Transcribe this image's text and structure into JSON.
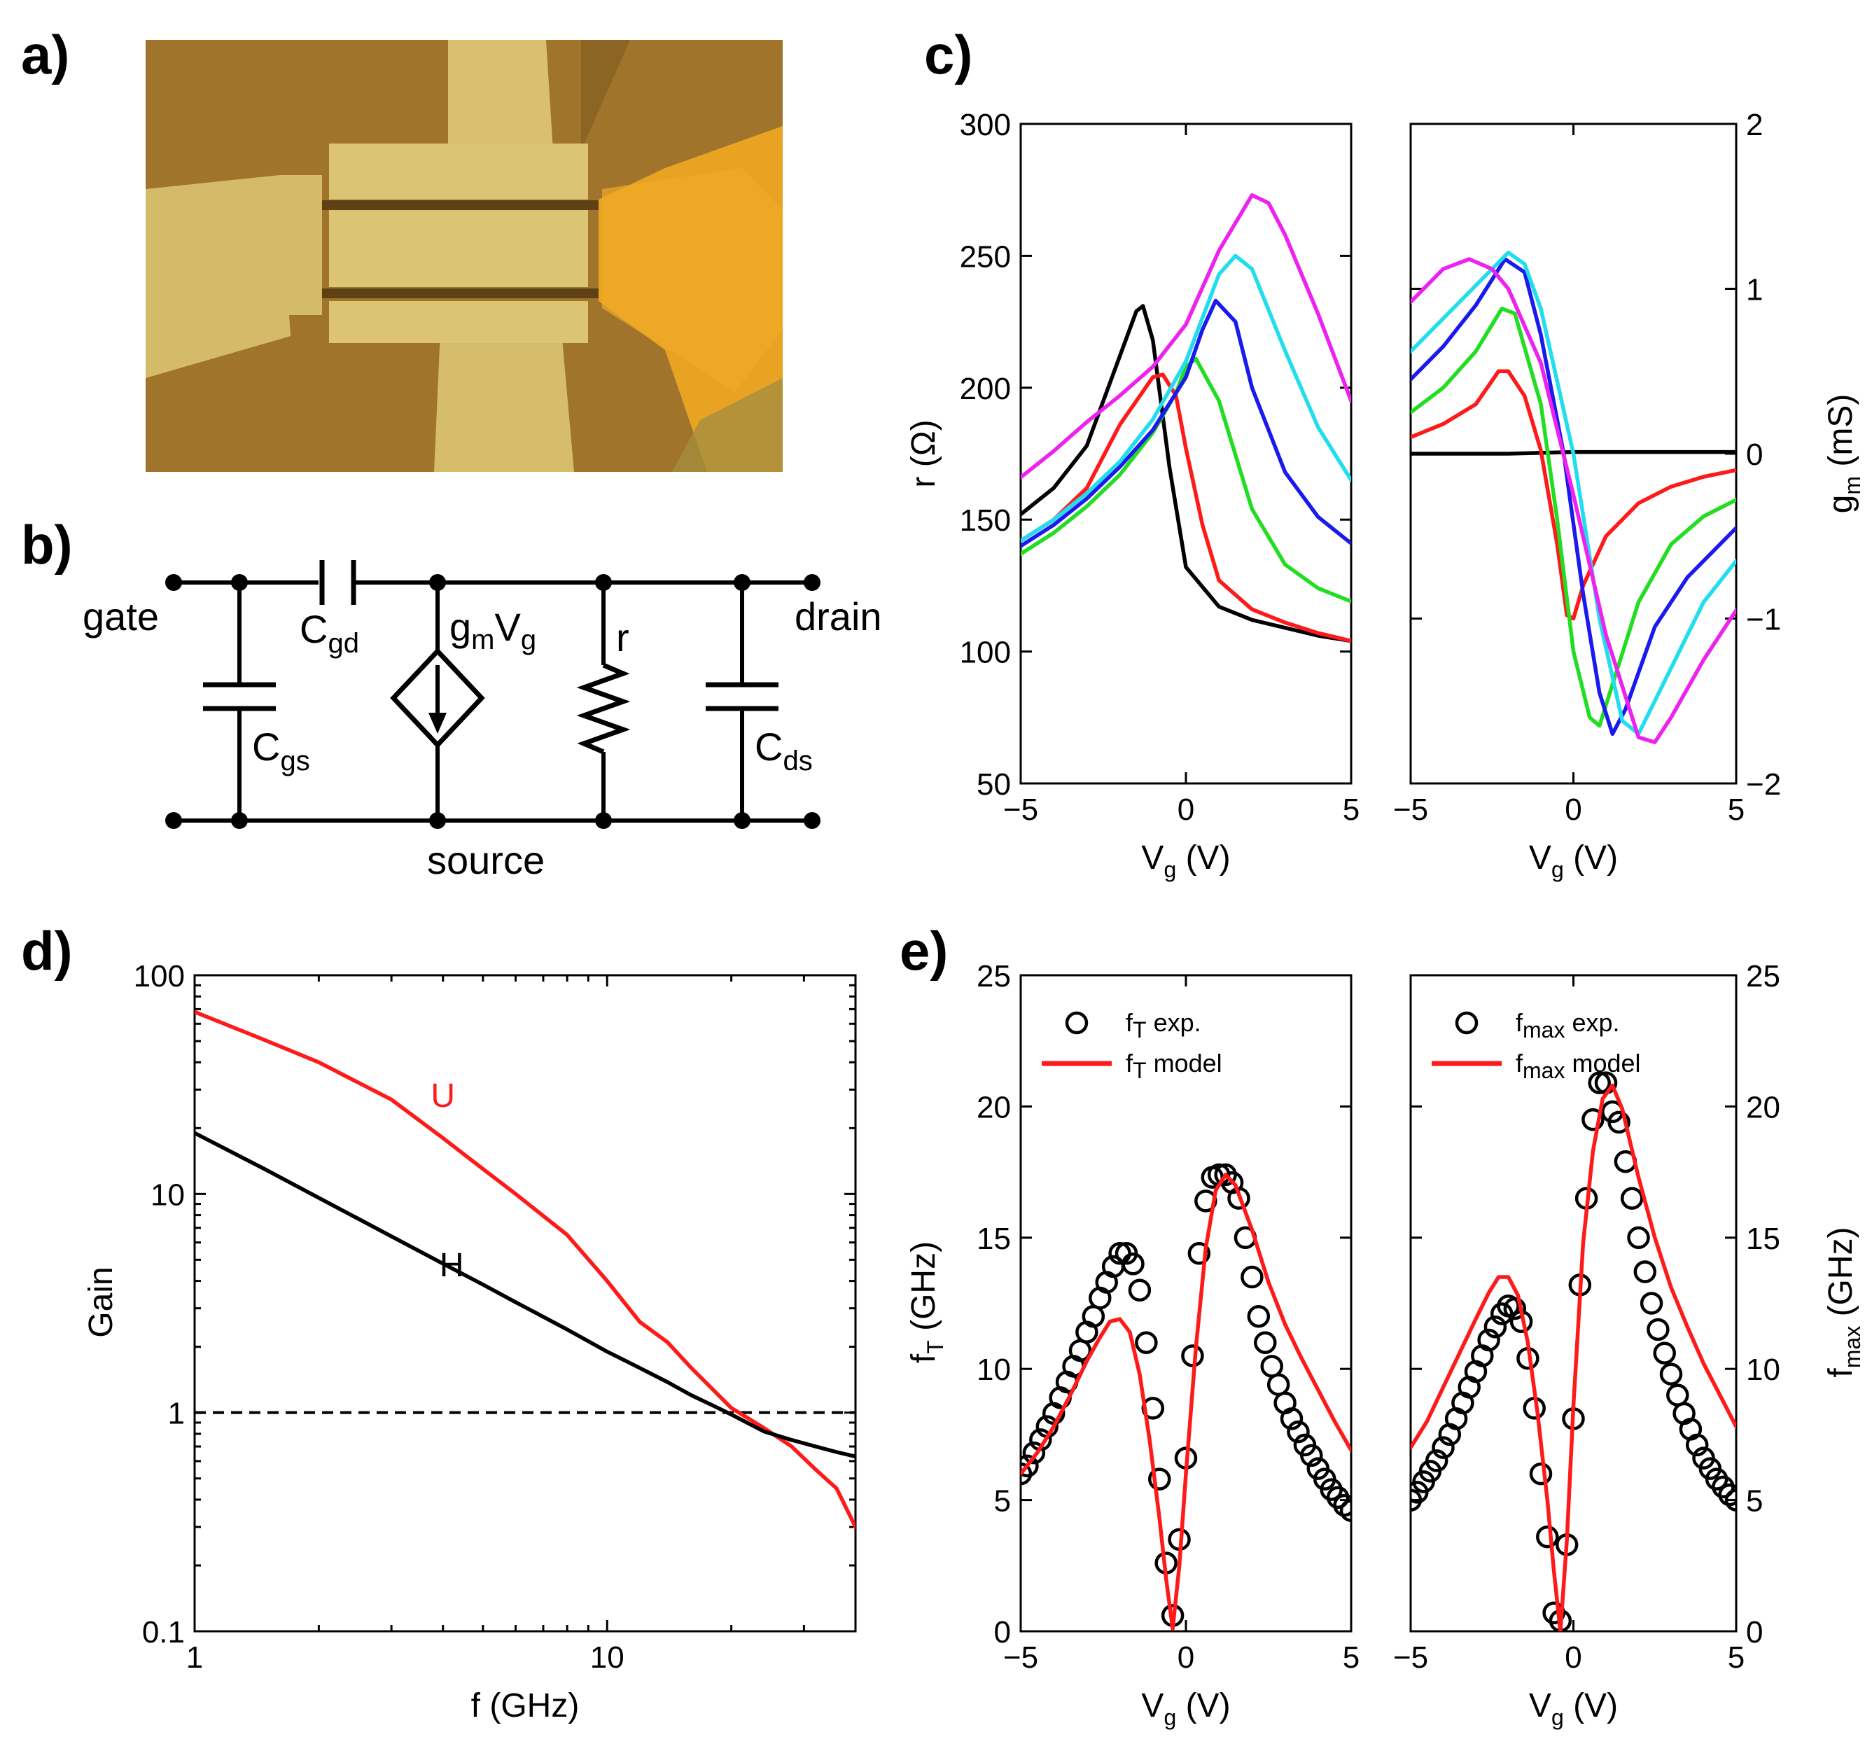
{
  "panel_labels": {
    "a": "a)",
    "b": "b)",
    "c": "c)",
    "d": "d)",
    "e": "e)"
  },
  "photo": {
    "description_colors": {
      "substrate": "#a07a2a",
      "metal": "#d8c070",
      "pad": "#e8a020",
      "gap": "#6a4a1a"
    }
  },
  "circuit": {
    "gate": "gate",
    "drain": "drain",
    "source": "source",
    "cgd": {
      "main": "C",
      "sub": "gd"
    },
    "cgs": {
      "main": "C",
      "sub": "gs"
    },
    "cds": {
      "main": "C",
      "sub": "ds"
    },
    "gm": {
      "g": "g",
      "m": "m",
      "V": "V",
      "gsub": "g"
    },
    "r": "r"
  },
  "colors": {
    "black": "#000000",
    "red": "#ff1a1a",
    "green": "#22dd22",
    "blue": "#1a1aee",
    "cyan": "#22ddee",
    "magenta": "#ee22ee"
  },
  "chart_data": [
    {
      "id": "c-left",
      "type": "line",
      "xlabel": {
        "main": "V",
        "sub": "g",
        "unit": " (V)"
      },
      "ylabel": {
        "main": "r (Ω)"
      },
      "xlim": [
        -5,
        5
      ],
      "ylim": [
        50,
        300
      ],
      "xticks": [
        -5,
        0,
        5
      ],
      "yticks": [
        50,
        100,
        150,
        200,
        250,
        300
      ],
      "xticklabels": [
        "−5",
        "0",
        "5"
      ],
      "yticklabels": [
        "50",
        "100",
        "150",
        "200",
        "250",
        "300"
      ],
      "series": [
        {
          "name": "black",
          "color": "#000000",
          "x": [
            -5,
            -4,
            -3,
            -2,
            -1.5,
            -1.3,
            -1,
            -0.5,
            0,
            1,
            2,
            3,
            4,
            5
          ],
          "y": [
            152,
            162,
            178,
            212,
            229,
            231,
            218,
            170,
            132,
            117,
            112,
            109,
            106,
            104
          ]
        },
        {
          "name": "red",
          "color": "#ff1a1a",
          "x": [
            -5,
            -4,
            -3,
            -2,
            -1,
            -0.7,
            -0.3,
            0,
            0.5,
            1,
            2,
            3,
            4,
            5
          ],
          "y": [
            142,
            150,
            162,
            186,
            204,
            205,
            197,
            177,
            148,
            127,
            116,
            111,
            107,
            104
          ]
        },
        {
          "name": "green",
          "color": "#22dd22",
          "x": [
            -5,
            -4,
            -3,
            -2,
            -1,
            -0.3,
            0,
            0.3,
            1,
            2,
            3,
            4,
            5
          ],
          "y": [
            137,
            145,
            155,
            167,
            183,
            198,
            208,
            211,
            195,
            154,
            133,
            124,
            119
          ]
        },
        {
          "name": "blue",
          "color": "#1a1aee",
          "x": [
            -5,
            -4,
            -3,
            -2,
            -1,
            0,
            0.5,
            0.9,
            1.5,
            2,
            3,
            4,
            5
          ],
          "y": [
            140,
            148,
            158,
            170,
            184,
            204,
            222,
            233,
            225,
            200,
            168,
            151,
            141
          ]
        },
        {
          "name": "cyan",
          "color": "#22ddee",
          "x": [
            -5,
            -4,
            -3,
            -2,
            -1,
            0,
            1,
            1.5,
            2,
            3,
            4,
            5
          ],
          "y": [
            142,
            150,
            160,
            172,
            188,
            210,
            243,
            250,
            245,
            214,
            185,
            165
          ]
        },
        {
          "name": "magenta",
          "color": "#ee22ee",
          "x": [
            -5,
            -4,
            -3,
            -2,
            -1,
            0,
            1,
            2,
            2.5,
            3,
            4,
            5
          ],
          "y": [
            166,
            176,
            187,
            197,
            208,
            224,
            252,
            273,
            270,
            258,
            228,
            195
          ]
        }
      ]
    },
    {
      "id": "c-right",
      "type": "line",
      "xlabel": {
        "main": "V",
        "sub": "g",
        "unit": " (V)"
      },
      "ylabel": {
        "main": "g",
        "sub": "m",
        "unit": " (mS)"
      },
      "xlim": [
        -5,
        5
      ],
      "ylim": [
        -2,
        2
      ],
      "xticks": [
        -5,
        0,
        5
      ],
      "yticks": [
        -2,
        -1,
        0,
        1,
        2
      ],
      "xticklabels": [
        "−5",
        "0",
        "5"
      ],
      "yticklabels": [
        "−2",
        "−1",
        "0",
        "1",
        "2"
      ],
      "series": [
        {
          "name": "black",
          "color": "#000000",
          "x": [
            -5,
            -2,
            0,
            2,
            5
          ],
          "y": [
            0,
            0,
            0.01,
            0.01,
            0.01
          ]
        },
        {
          "name": "red",
          "color": "#ff1a1a",
          "x": [
            -5,
            -4,
            -3,
            -2.3,
            -2,
            -1.5,
            -1,
            -0.5,
            -0.2,
            0,
            0.3,
            1,
            2,
            3,
            4,
            5
          ],
          "y": [
            0.1,
            0.18,
            0.3,
            0.5,
            0.5,
            0.35,
            0.02,
            -0.55,
            -0.98,
            -1.0,
            -0.8,
            -0.5,
            -0.3,
            -0.2,
            -0.14,
            -0.1
          ]
        },
        {
          "name": "green",
          "color": "#22dd22",
          "x": [
            -5,
            -4,
            -3,
            -2.2,
            -1.8,
            -1,
            -0.5,
            0,
            0.5,
            0.8,
            1.2,
            2,
            3,
            4,
            5
          ],
          "y": [
            0.25,
            0.4,
            0.62,
            0.88,
            0.85,
            0.3,
            -0.4,
            -1.2,
            -1.6,
            -1.65,
            -1.4,
            -0.9,
            -0.55,
            -0.38,
            -0.28
          ]
        },
        {
          "name": "blue",
          "color": "#1a1aee",
          "x": [
            -5,
            -4,
            -3,
            -2.1,
            -1.5,
            -1,
            -0.3,
            0.3,
            0.8,
            1.2,
            1.6,
            2.5,
            3.5,
            5
          ],
          "y": [
            0.45,
            0.65,
            0.9,
            1.18,
            1.1,
            0.72,
            0.0,
            -0.85,
            -1.45,
            -1.7,
            -1.55,
            -1.05,
            -0.75,
            -0.45
          ]
        },
        {
          "name": "cyan",
          "color": "#22ddee",
          "x": [
            -5,
            -4,
            -3,
            -2,
            -1.5,
            -1,
            0,
            0.8,
            1.5,
            2,
            3,
            4,
            5
          ],
          "y": [
            0.62,
            0.82,
            1.02,
            1.22,
            1.15,
            0.88,
            0.0,
            -1.0,
            -1.62,
            -1.7,
            -1.3,
            -0.9,
            -0.65
          ]
        },
        {
          "name": "magenta",
          "color": "#ee22ee",
          "x": [
            -5,
            -4,
            -3.2,
            -2.5,
            -2,
            -1,
            0,
            1,
            2,
            2.5,
            3,
            4,
            5
          ],
          "y": [
            0.92,
            1.12,
            1.18,
            1.12,
            1.0,
            0.55,
            -0.25,
            -1.1,
            -1.72,
            -1.75,
            -1.6,
            -1.25,
            -0.95
          ]
        }
      ]
    },
    {
      "id": "d",
      "type": "line",
      "scale": "log-log",
      "xlabel": {
        "main": "f (GHz)"
      },
      "ylabel": {
        "main": "Gain"
      },
      "xlim": [
        1,
        40
      ],
      "ylim": [
        0.1,
        100
      ],
      "xticks": [
        1,
        10
      ],
      "yticks": [
        0.1,
        1,
        10,
        100
      ],
      "xticklabels": [
        "1",
        "10"
      ],
      "yticklabels": [
        "0.1",
        "1",
        "10",
        "100"
      ],
      "annotations": [
        {
          "text": "U",
          "color": "#ff1a1a",
          "x": 4,
          "y": 25
        },
        {
          "text": "H",
          "color": "#000000",
          "x": 4.2,
          "y": 4.2
        }
      ],
      "reference_line": {
        "y": 1,
        "style": "dashed"
      },
      "series": [
        {
          "name": "U",
          "color": "#ff1a1a",
          "x": [
            1,
            1.5,
            2,
            3,
            4,
            5,
            6,
            8,
            10,
            12,
            14,
            16,
            20,
            24,
            28,
            32,
            36,
            40
          ],
          "y": [
            68,
            50,
            40,
            27,
            18,
            13,
            10,
            6.5,
            4.0,
            2.6,
            2.1,
            1.6,
            1.05,
            0.85,
            0.7,
            0.55,
            0.45,
            0.3
          ]
        },
        {
          "name": "H",
          "color": "#000000",
          "x": [
            1,
            1.5,
            2,
            3,
            4,
            5,
            6,
            8,
            10,
            12,
            14,
            16,
            18,
            20,
            24,
            28,
            32,
            36,
            40
          ],
          "y": [
            19,
            12.8,
            9.6,
            6.4,
            4.8,
            3.85,
            3.2,
            2.4,
            1.9,
            1.6,
            1.38,
            1.2,
            1.08,
            0.98,
            0.82,
            0.75,
            0.7,
            0.66,
            0.63
          ]
        }
      ]
    },
    {
      "id": "e-left",
      "type": "scatter+line",
      "xlabel": {
        "main": "V",
        "sub": "g",
        "unit": " (V)"
      },
      "ylabel": {
        "main": "f",
        "sub": "T",
        "unit": " (GHz)"
      },
      "xlim": [
        -5,
        5
      ],
      "ylim": [
        0,
        25
      ],
      "xticks": [
        -5,
        0,
        5
      ],
      "yticks": [
        0,
        5,
        10,
        15,
        20,
        25
      ],
      "xticklabels": [
        "−5",
        "0",
        "5"
      ],
      "yticklabels": [
        "0",
        "5",
        "10",
        "15",
        "20",
        "25"
      ],
      "legend": {
        "position": "top-left",
        "entries": [
          {
            "main": "f",
            "sub": "T",
            "rest": " exp."
          },
          {
            "main": "f",
            "sub": "T",
            "rest": " model"
          }
        ]
      },
      "exp": {
        "x": [
          -5,
          -4.8,
          -4.6,
          -4.4,
          -4.2,
          -4,
          -3.8,
          -3.6,
          -3.4,
          -3.2,
          -3,
          -2.8,
          -2.6,
          -2.4,
          -2.2,
          -2,
          -1.8,
          -1.6,
          -1.4,
          -1.2,
          -1,
          -0.8,
          -0.6,
          -0.4,
          -0.2,
          0,
          0.2,
          0.4,
          0.6,
          0.8,
          1,
          1.2,
          1.4,
          1.6,
          1.8,
          2,
          2.2,
          2.4,
          2.6,
          2.8,
          3,
          3.2,
          3.4,
          3.6,
          3.8,
          4,
          4.2,
          4.4,
          4.6,
          4.8,
          5
        ],
        "y": [
          6,
          6.3,
          6.8,
          7.3,
          7.8,
          8.3,
          8.9,
          9.5,
          10.1,
          10.7,
          11.4,
          12.0,
          12.7,
          13.3,
          13.9,
          14.4,
          14.4,
          14.0,
          13.0,
          11.0,
          8.5,
          5.8,
          2.6,
          0.6,
          3.5,
          6.6,
          10.5,
          14.4,
          16.4,
          17.3,
          17.4,
          17.4,
          17.1,
          16.5,
          15.0,
          13.5,
          12.0,
          11.0,
          10.1,
          9.4,
          8.7,
          8.1,
          7.6,
          7.1,
          6.7,
          6.2,
          5.8,
          5.4,
          5.1,
          4.8,
          4.6
        ]
      },
      "model": {
        "x": [
          -5,
          -4.5,
          -4,
          -3.5,
          -3,
          -2.6,
          -2.3,
          -2,
          -1.7,
          -1.4,
          -1.1,
          -0.8,
          -0.6,
          -0.4,
          -0.2,
          0,
          0.3,
          0.6,
          0.9,
          1.2,
          1.5,
          2,
          2.5,
          3,
          3.5,
          4,
          4.5,
          5
        ],
        "y": [
          6,
          6.8,
          7.8,
          9,
          10.3,
          11.2,
          11.8,
          11.9,
          11.4,
          9.8,
          7.3,
          4.3,
          2.0,
          0.1,
          2.5,
          6.0,
          10.8,
          14.6,
          16.8,
          17.4,
          17.0,
          15.3,
          13.3,
          11.7,
          10.4,
          9.2,
          8.0,
          6.9
        ]
      }
    },
    {
      "id": "e-right",
      "type": "scatter+line",
      "xlabel": {
        "main": "V",
        "sub": "g",
        "unit": " (V)"
      },
      "ylabel": {
        "main": "f",
        "sub": "max",
        "unit": " (GHz)"
      },
      "xlim": [
        -5,
        5
      ],
      "ylim": [
        0,
        25
      ],
      "xticks": [
        -5,
        0,
        5
      ],
      "yticks": [
        0,
        5,
        10,
        15,
        20,
        25
      ],
      "xticklabels": [
        "−5",
        "0",
        "5"
      ],
      "yticklabels": [
        "0",
        "5",
        "10",
        "15",
        "20",
        "25"
      ],
      "legend": {
        "position": "top-left",
        "entries": [
          {
            "main": "f",
            "sub": "max",
            "rest": " exp."
          },
          {
            "main": "f",
            "sub": "max",
            "rest": " model"
          }
        ]
      },
      "exp": {
        "x": [
          -5,
          -4.8,
          -4.6,
          -4.4,
          -4.2,
          -4,
          -3.8,
          -3.6,
          -3.4,
          -3.2,
          -3,
          -2.8,
          -2.6,
          -2.4,
          -2.2,
          -2,
          -1.8,
          -1.6,
          -1.4,
          -1.2,
          -1,
          -0.8,
          -0.6,
          -0.4,
          -0.2,
          0,
          0.2,
          0.4,
          0.6,
          0.8,
          1,
          1.2,
          1.4,
          1.6,
          1.8,
          2,
          2.2,
          2.4,
          2.6,
          2.8,
          3,
          3.2,
          3.4,
          3.6,
          3.8,
          4,
          4.2,
          4.4,
          4.6,
          4.8,
          5
        ],
        "y": [
          5.0,
          5.3,
          5.7,
          6.1,
          6.5,
          7.0,
          7.5,
          8.1,
          8.7,
          9.3,
          9.9,
          10.5,
          11.1,
          11.6,
          12.1,
          12.4,
          12.3,
          11.8,
          10.4,
          8.5,
          6.0,
          3.6,
          0.7,
          0.4,
          3.3,
          8.1,
          13.2,
          16.5,
          19.5,
          20.9,
          20.9,
          19.8,
          19.4,
          17.9,
          16.5,
          15.0,
          13.7,
          12.5,
          11.5,
          10.6,
          9.8,
          9.0,
          8.3,
          7.7,
          7.1,
          6.6,
          6.2,
          5.8,
          5.5,
          5.2,
          5.0
        ]
      },
      "model": {
        "x": [
          -5,
          -4.5,
          -4,
          -3.5,
          -3,
          -2.6,
          -2.3,
          -2,
          -1.7,
          -1.4,
          -1.1,
          -0.8,
          -0.6,
          -0.4,
          -0.2,
          0,
          0.3,
          0.6,
          0.9,
          1.2,
          1.5,
          2,
          2.5,
          3,
          3.5,
          4,
          4.5,
          5
        ],
        "y": [
          7.0,
          8.0,
          9.3,
          10.6,
          11.9,
          12.9,
          13.5,
          13.5,
          12.8,
          11.0,
          8.3,
          5.0,
          2.3,
          0.0,
          3.5,
          8.6,
          14.8,
          18.3,
          20.3,
          20.8,
          19.9,
          17.3,
          15.0,
          13.1,
          11.6,
          10.2,
          9.0,
          7.8
        ]
      }
    }
  ]
}
